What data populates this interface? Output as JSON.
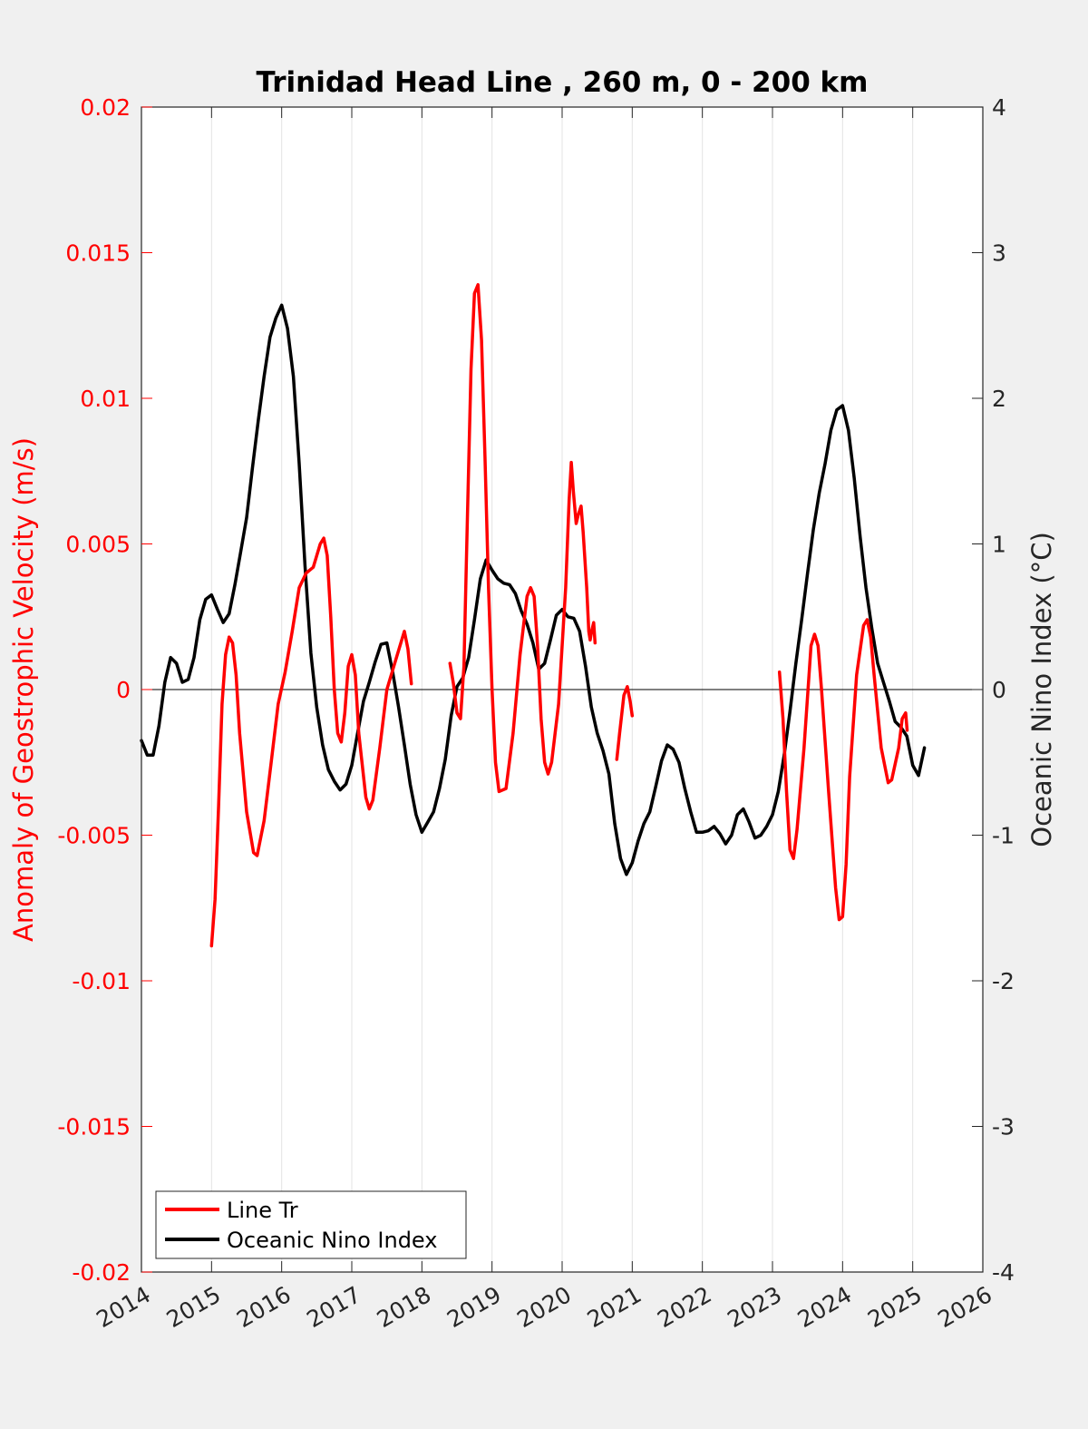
{
  "chart_data": {
    "type": "line",
    "title": "Trinidad Head Line , 260 m, 0 - 200 km",
    "ylabel_left": "Anomaly of Geostrophic Velocity (m/s)",
    "ylabel_right": "Oceanic Nino Index (°C)",
    "xlabel": "",
    "xlim": [
      2014,
      2026
    ],
    "ylim_left": [
      -0.02,
      0.02
    ],
    "ylim_right": [
      -4,
      4
    ],
    "x_ticks": [
      "2014",
      "2015",
      "2016",
      "2017",
      "2018",
      "2019",
      "2020",
      "2021",
      "2022",
      "2023",
      "2024",
      "2025",
      "2026"
    ],
    "y_ticks_left": [
      "0.02",
      "0.015",
      "0.01",
      "0.005",
      "0",
      "-0.005",
      "-0.01",
      "-0.015",
      "-0.02"
    ],
    "y_ticks_right": [
      "4",
      "3",
      "2",
      "1",
      "0",
      "-1",
      "-2",
      "-3",
      "-4"
    ],
    "grid": "vertical",
    "zero_line": true,
    "legend_position": "bottom-left",
    "colors": {
      "line_tr": "#ff0000",
      "oni": "#000000",
      "left_axis": "#ff0000",
      "right_axis": "#262626"
    },
    "series": [
      {
        "name": "Line Tr",
        "axis": "left",
        "segments": [
          [
            [
              2015.0,
              -0.0088
            ],
            [
              2015.05,
              -0.0072
            ],
            [
              2015.1,
              -0.004
            ],
            [
              2015.15,
              -0.0005
            ],
            [
              2015.2,
              0.0012
            ],
            [
              2015.25,
              0.0018
            ],
            [
              2015.3,
              0.0016
            ],
            [
              2015.35,
              0.0005
            ],
            [
              2015.4,
              -0.0015
            ],
            [
              2015.5,
              -0.0042
            ],
            [
              2015.6,
              -0.0056
            ],
            [
              2015.65,
              -0.0057
            ],
            [
              2015.75,
              -0.0045
            ],
            [
              2015.85,
              -0.0025
            ],
            [
              2015.95,
              -0.0005
            ],
            [
              2016.05,
              0.0006
            ],
            [
              2016.15,
              0.002
            ],
            [
              2016.25,
              0.0035
            ],
            [
              2016.35,
              0.004
            ],
            [
              2016.45,
              0.0042
            ],
            [
              2016.55,
              0.005
            ],
            [
              2016.6,
              0.0052
            ],
            [
              2016.65,
              0.0046
            ],
            [
              2016.7,
              0.0025
            ],
            [
              2016.75,
              0.0
            ],
            [
              2016.8,
              -0.0015
            ],
            [
              2016.85,
              -0.0018
            ],
            [
              2016.9,
              -0.0008
            ],
            [
              2016.95,
              0.0008
            ],
            [
              2017.0,
              0.0012
            ],
            [
              2017.05,
              0.0005
            ],
            [
              2017.1,
              -0.0015
            ],
            [
              2017.2,
              -0.0037
            ],
            [
              2017.25,
              -0.0041
            ],
            [
              2017.3,
              -0.0038
            ],
            [
              2017.4,
              -0.002
            ],
            [
              2017.5,
              0.0
            ],
            [
              2017.6,
              0.0008
            ],
            [
              2017.7,
              0.0016
            ],
            [
              2017.75,
              0.002
            ],
            [
              2017.8,
              0.0014
            ],
            [
              2017.85,
              0.0002
            ]
          ],
          [
            [
              2018.4,
              0.0009
            ],
            [
              2018.45,
              0.0002
            ],
            [
              2018.5,
              -0.0008
            ],
            [
              2018.55,
              -0.001
            ],
            [
              2018.6,
              0.0008
            ],
            [
              2018.65,
              0.006
            ],
            [
              2018.7,
              0.011
            ],
            [
              2018.75,
              0.0136
            ],
            [
              2018.8,
              0.0139
            ],
            [
              2018.85,
              0.012
            ],
            [
              2018.9,
              0.008
            ],
            [
              2018.95,
              0.0035
            ],
            [
              2019.0,
              0.0
            ],
            [
              2019.05,
              -0.0025
            ],
            [
              2019.1,
              -0.0035
            ],
            [
              2019.2,
              -0.0034
            ],
            [
              2019.3,
              -0.0015
            ],
            [
              2019.4,
              0.0012
            ],
            [
              2019.5,
              0.0032
            ],
            [
              2019.55,
              0.0035
            ],
            [
              2019.6,
              0.0032
            ],
            [
              2019.65,
              0.0015
            ],
            [
              2019.7,
              -0.001
            ],
            [
              2019.75,
              -0.0025
            ],
            [
              2019.8,
              -0.0029
            ],
            [
              2019.85,
              -0.0025
            ],
            [
              2019.95,
              -0.0005
            ],
            [
              2020.05,
              0.0035
            ],
            [
              2020.1,
              0.0065
            ],
            [
              2020.13,
              0.0078
            ],
            [
              2020.16,
              0.0068
            ],
            [
              2020.2,
              0.0057
            ],
            [
              2020.23,
              0.006
            ],
            [
              2020.27,
              0.0063
            ],
            [
              2020.3,
              0.0054
            ],
            [
              2020.35,
              0.0035
            ],
            [
              2020.38,
              0.002
            ],
            [
              2020.4,
              0.0017
            ],
            [
              2020.42,
              0.002
            ],
            [
              2020.45,
              0.0023
            ],
            [
              2020.47,
              0.0016
            ]
          ],
          [
            [
              2020.78,
              -0.0024
            ],
            [
              2020.82,
              -0.0015
            ],
            [
              2020.88,
              -0.0002
            ],
            [
              2020.93,
              0.0001
            ],
            [
              2020.97,
              -0.0004
            ],
            [
              2021.0,
              -0.0009
            ]
          ],
          [
            [
              2023.1,
              0.0006
            ],
            [
              2023.15,
              -0.001
            ],
            [
              2023.2,
              -0.0035
            ],
            [
              2023.25,
              -0.0055
            ],
            [
              2023.3,
              -0.0058
            ],
            [
              2023.35,
              -0.0048
            ],
            [
              2023.45,
              -0.002
            ],
            [
              2023.55,
              0.0015
            ],
            [
              2023.6,
              0.0019
            ],
            [
              2023.65,
              0.0015
            ],
            [
              2023.7,
              0.0
            ],
            [
              2023.8,
              -0.0035
            ],
            [
              2023.9,
              -0.0068
            ],
            [
              2023.95,
              -0.0079
            ],
            [
              2024.0,
              -0.0078
            ],
            [
              2024.05,
              -0.006
            ],
            [
              2024.1,
              -0.003
            ],
            [
              2024.2,
              0.0005
            ],
            [
              2024.3,
              0.0022
            ],
            [
              2024.35,
              0.0024
            ],
            [
              2024.4,
              0.0018
            ],
            [
              2024.45,
              0.0005
            ],
            [
              2024.55,
              -0.002
            ],
            [
              2024.65,
              -0.0032
            ],
            [
              2024.7,
              -0.0031
            ],
            [
              2024.8,
              -0.002
            ],
            [
              2024.85,
              -0.001
            ],
            [
              2024.9,
              -0.0008
            ],
            [
              2024.92,
              -0.0014
            ]
          ]
        ]
      },
      {
        "name": "Oceanic Nino Index",
        "axis": "right",
        "segments": [
          [
            [
              2014.0,
              -0.35
            ],
            [
              2014.083,
              -0.45
            ],
            [
              2014.167,
              -0.45
            ],
            [
              2014.25,
              -0.25
            ],
            [
              2014.333,
              0.05
            ],
            [
              2014.417,
              0.22
            ],
            [
              2014.5,
              0.18
            ],
            [
              2014.583,
              0.05
            ],
            [
              2014.667,
              0.07
            ],
            [
              2014.75,
              0.22
            ],
            [
              2014.833,
              0.48
            ],
            [
              2014.917,
              0.62
            ],
            [
              2015.0,
              0.65
            ],
            [
              2015.083,
              0.55
            ],
            [
              2015.167,
              0.46
            ],
            [
              2015.25,
              0.52
            ],
            [
              2015.333,
              0.72
            ],
            [
              2015.417,
              0.95
            ],
            [
              2015.5,
              1.18
            ],
            [
              2015.583,
              1.52
            ],
            [
              2015.667,
              1.85
            ],
            [
              2015.75,
              2.15
            ],
            [
              2015.833,
              2.42
            ],
            [
              2015.917,
              2.55
            ],
            [
              2016.0,
              2.64
            ],
            [
              2016.083,
              2.48
            ],
            [
              2016.167,
              2.15
            ],
            [
              2016.25,
              1.55
            ],
            [
              2016.333,
              0.85
            ],
            [
              2016.417,
              0.25
            ],
            [
              2016.5,
              -0.12
            ],
            [
              2016.583,
              -0.38
            ],
            [
              2016.667,
              -0.55
            ],
            [
              2016.75,
              -0.63
            ],
            [
              2016.833,
              -0.69
            ],
            [
              2016.917,
              -0.65
            ],
            [
              2017.0,
              -0.52
            ],
            [
              2017.083,
              -0.3
            ],
            [
              2017.167,
              -0.08
            ],
            [
              2017.25,
              0.05
            ],
            [
              2017.333,
              0.19
            ],
            [
              2017.417,
              0.31
            ],
            [
              2017.5,
              0.32
            ],
            [
              2017.583,
              0.12
            ],
            [
              2017.667,
              -0.12
            ],
            [
              2017.75,
              -0.38
            ],
            [
              2017.833,
              -0.65
            ],
            [
              2017.917,
              -0.86
            ],
            [
              2018.0,
              -0.98
            ],
            [
              2018.083,
              -0.91
            ],
            [
              2018.167,
              -0.84
            ],
            [
              2018.25,
              -0.68
            ],
            [
              2018.333,
              -0.48
            ],
            [
              2018.417,
              -0.18
            ],
            [
              2018.5,
              0.02
            ],
            [
              2018.583,
              0.08
            ],
            [
              2018.667,
              0.22
            ],
            [
              2018.75,
              0.48
            ],
            [
              2018.833,
              0.76
            ],
            [
              2018.917,
              0.89
            ],
            [
              2019.0,
              0.82
            ],
            [
              2019.083,
              0.76
            ],
            [
              2019.167,
              0.73
            ],
            [
              2019.25,
              0.72
            ],
            [
              2019.333,
              0.66
            ],
            [
              2019.417,
              0.54
            ],
            [
              2019.5,
              0.45
            ],
            [
              2019.583,
              0.32
            ],
            [
              2019.667,
              0.14
            ],
            [
              2019.75,
              0.18
            ],
            [
              2019.833,
              0.34
            ],
            [
              2019.917,
              0.51
            ],
            [
              2020.0,
              0.55
            ],
            [
              2020.083,
              0.5
            ],
            [
              2020.167,
              0.49
            ],
            [
              2020.25,
              0.4
            ],
            [
              2020.333,
              0.16
            ],
            [
              2020.417,
              -0.12
            ],
            [
              2020.5,
              -0.3
            ],
            [
              2020.583,
              -0.42
            ],
            [
              2020.667,
              -0.58
            ],
            [
              2020.75,
              -0.92
            ],
            [
              2020.833,
              -1.16
            ],
            [
              2020.917,
              -1.27
            ],
            [
              2021.0,
              -1.19
            ],
            [
              2021.083,
              -1.04
            ],
            [
              2021.167,
              -0.92
            ],
            [
              2021.25,
              -0.84
            ],
            [
              2021.333,
              -0.67
            ],
            [
              2021.417,
              -0.49
            ],
            [
              2021.5,
              -0.38
            ],
            [
              2021.583,
              -0.41
            ],
            [
              2021.667,
              -0.5
            ],
            [
              2021.75,
              -0.68
            ],
            [
              2021.833,
              -0.84
            ],
            [
              2021.917,
              -0.98
            ],
            [
              2022.0,
              -0.98
            ],
            [
              2022.083,
              -0.97
            ],
            [
              2022.167,
              -0.94
            ],
            [
              2022.25,
              -0.99
            ],
            [
              2022.333,
              -1.06
            ],
            [
              2022.417,
              -1.0
            ],
            [
              2022.5,
              -0.86
            ],
            [
              2022.583,
              -0.82
            ],
            [
              2022.667,
              -0.91
            ],
            [
              2022.75,
              -1.02
            ],
            [
              2022.833,
              -1.0
            ],
            [
              2022.917,
              -0.94
            ],
            [
              2023.0,
              -0.86
            ],
            [
              2023.083,
              -0.7
            ],
            [
              2023.167,
              -0.45
            ],
            [
              2023.25,
              -0.15
            ],
            [
              2023.333,
              0.18
            ],
            [
              2023.417,
              0.48
            ],
            [
              2023.5,
              0.8
            ],
            [
              2023.583,
              1.1
            ],
            [
              2023.667,
              1.35
            ],
            [
              2023.75,
              1.55
            ],
            [
              2023.833,
              1.78
            ],
            [
              2023.917,
              1.92
            ],
            [
              2024.0,
              1.95
            ],
            [
              2024.083,
              1.78
            ],
            [
              2024.167,
              1.45
            ],
            [
              2024.25,
              1.05
            ],
            [
              2024.333,
              0.7
            ],
            [
              2024.417,
              0.42
            ],
            [
              2024.5,
              0.18
            ],
            [
              2024.583,
              0.05
            ],
            [
              2024.667,
              -0.08
            ],
            [
              2024.75,
              -0.22
            ],
            [
              2024.833,
              -0.26
            ],
            [
              2024.917,
              -0.32
            ],
            [
              2025.0,
              -0.52
            ],
            [
              2025.083,
              -0.59
            ],
            [
              2025.167,
              -0.4
            ]
          ]
        ]
      }
    ]
  }
}
